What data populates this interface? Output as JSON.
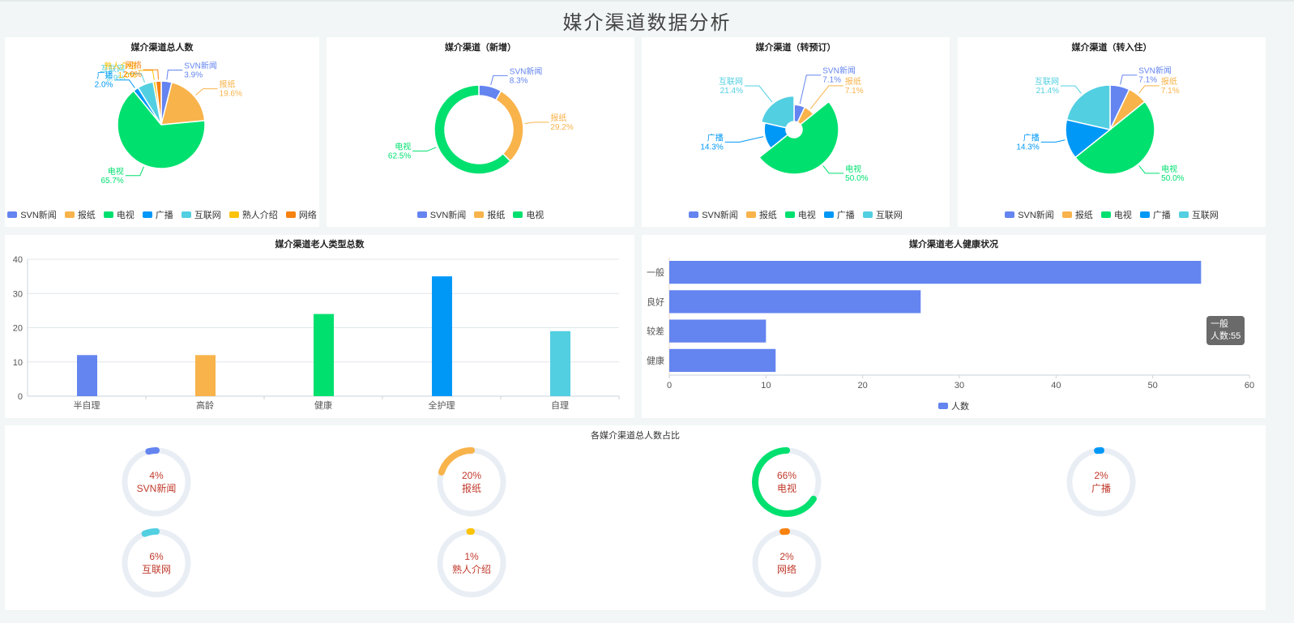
{
  "page": {
    "title": "媒介渠道数据分析"
  },
  "colors": {
    "svn": "#6484f0",
    "paper": "#f8b34b",
    "tv": "#00e06f",
    "radio": "#0098f7",
    "internet": "#52cfe1",
    "referral": "#fcc307",
    "network": "#f7820f",
    "track": "#e9eef5",
    "ring_text": "#c0392b"
  },
  "charts": {
    "total": {
      "title": "媒介渠道总人数",
      "legend": [
        "SVN新闻",
        "报纸",
        "电视",
        "广播",
        "互联网",
        "熟人介绍",
        "网络"
      ],
      "labels": [
        {
          "name": "SVN新闻",
          "pct": "3.9%"
        },
        {
          "name": "报纸",
          "pct": "19.6%"
        },
        {
          "name": "电视",
          "pct": "65.7%"
        },
        {
          "name": "广播",
          "pct": "2.0%"
        },
        {
          "name": "互联网",
          "pct": "5.9%"
        },
        {
          "name": "熟人介绍",
          "pct": "1.0%"
        },
        {
          "name": "网络",
          "pct": "2.0%"
        }
      ]
    },
    "new": {
      "title": "媒介渠道（新增）",
      "legend": [
        "SVN新闻",
        "报纸",
        "电视"
      ],
      "labels": [
        {
          "name": "SVN新闻",
          "pct": "8.3%"
        },
        {
          "name": "报纸",
          "pct": "29.2%"
        },
        {
          "name": "电视",
          "pct": "62.5%"
        }
      ]
    },
    "booking": {
      "title": "媒介渠道（转预订）",
      "legend": [
        "SVN新闻",
        "报纸",
        "电视",
        "广播",
        "互联网"
      ],
      "labels": [
        {
          "name": "SVN新闻",
          "pct": "7.1%"
        },
        {
          "name": "报纸",
          "pct": "7.1%"
        },
        {
          "name": "电视",
          "pct": "50.0%"
        },
        {
          "name": "广播",
          "pct": "14.3%"
        },
        {
          "name": "互联网",
          "pct": "21.4%"
        }
      ]
    },
    "checkin": {
      "title": "媒介渠道（转入住）",
      "legend": [
        "SVN新闻",
        "报纸",
        "电视",
        "广播",
        "互联网"
      ],
      "labels": [
        {
          "name": "SVN新闻",
          "pct": "7.1%"
        },
        {
          "name": "报纸",
          "pct": "7.1%"
        },
        {
          "name": "电视",
          "pct": "50.0%"
        },
        {
          "name": "广播",
          "pct": "14.3%"
        },
        {
          "name": "互联网",
          "pct": "21.4%"
        }
      ]
    },
    "elder_types": {
      "title": "媒介渠道老人类型总数",
      "yticks": [
        "0",
        "10",
        "20",
        "30",
        "40"
      ],
      "categories": [
        "半自理",
        "高龄",
        "健康",
        "全护理",
        "自理"
      ]
    },
    "health": {
      "title": "媒介渠道老人健康状况",
      "categories": [
        "一般",
        "良好",
        "较差",
        "健康"
      ],
      "xticks": [
        "0",
        "10",
        "20",
        "30",
        "40",
        "50",
        "60"
      ],
      "legend": "人数",
      "tooltip": {
        "name": "一般",
        "value": "人数:55"
      }
    },
    "ratio": {
      "title": "各媒介渠道总人数占比",
      "items": [
        {
          "pct": "4%",
          "name": "SVN新闻"
        },
        {
          "pct": "20%",
          "name": "报纸"
        },
        {
          "pct": "66%",
          "name": "电视"
        },
        {
          "pct": "2%",
          "name": "广播"
        },
        {
          "pct": "6%",
          "name": "互联网"
        },
        {
          "pct": "1%",
          "name": "熟人介绍"
        },
        {
          "pct": "2%",
          "name": "网络"
        }
      ]
    }
  },
  "chart_data": [
    {
      "type": "pie",
      "title": "媒介渠道总人数",
      "categories": [
        "SVN新闻",
        "报纸",
        "电视",
        "广播",
        "互联网",
        "熟人介绍",
        "网络"
      ],
      "values": [
        3.9,
        19.6,
        65.7,
        2.0,
        5.9,
        1.0,
        2.0
      ],
      "legend_position": "bottom"
    },
    {
      "type": "pie",
      "subtype": "donut",
      "title": "媒介渠道（新增）",
      "categories": [
        "SVN新闻",
        "报纸",
        "电视"
      ],
      "values": [
        8.3,
        29.2,
        62.5
      ],
      "legend_position": "bottom"
    },
    {
      "type": "pie",
      "subtype": "rose",
      "title": "媒介渠道（转预订）",
      "categories": [
        "SVN新闻",
        "报纸",
        "电视",
        "广播",
        "互联网"
      ],
      "values": [
        7.1,
        7.1,
        50.0,
        14.3,
        21.4
      ],
      "legend_position": "bottom"
    },
    {
      "type": "pie",
      "title": "媒介渠道（转入住）",
      "categories": [
        "SVN新闻",
        "报纸",
        "电视",
        "广播",
        "互联网"
      ],
      "values": [
        7.1,
        7.1,
        50.0,
        14.3,
        21.4
      ],
      "legend_position": "bottom"
    },
    {
      "type": "bar",
      "title": "媒介渠道老人类型总数",
      "categories": [
        "半自理",
        "高龄",
        "健康",
        "全护理",
        "自理"
      ],
      "values": [
        12,
        12,
        24,
        35,
        19
      ],
      "ylim": [
        0,
        40
      ],
      "grid": true
    },
    {
      "type": "bar",
      "orientation": "horizontal",
      "title": "媒介渠道老人健康状况",
      "categories": [
        "一般",
        "良好",
        "较差",
        "健康"
      ],
      "series": [
        {
          "name": "人数",
          "values": [
            55,
            26,
            10,
            11
          ]
        }
      ],
      "xlim": [
        0,
        60
      ],
      "legend_position": "bottom"
    },
    {
      "type": "pie",
      "subtype": "gauge-rings",
      "title": "各媒介渠道总人数占比",
      "categories": [
        "SVN新闻",
        "报纸",
        "电视",
        "广播",
        "互联网",
        "熟人介绍",
        "网络"
      ],
      "values": [
        4,
        20,
        66,
        2,
        6,
        1,
        2
      ]
    }
  ]
}
